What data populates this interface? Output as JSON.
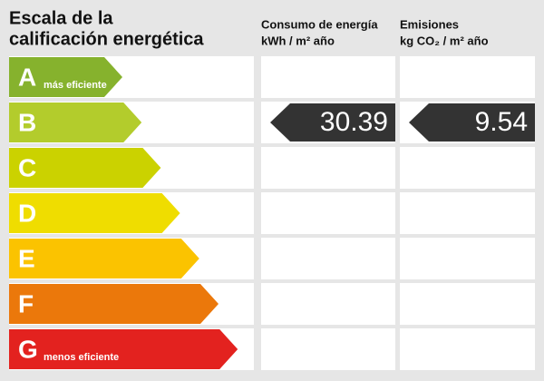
{
  "title_lines": [
    "Escala de la",
    "calificación energética"
  ],
  "columns": [
    {
      "title": "Consumo de energía",
      "unit": "kWh / m² año",
      "grade": "B",
      "value": "30.39"
    },
    {
      "title": "Emisiones",
      "unit": "kg CO₂ / m² año",
      "grade": "B",
      "value": "9.54"
    }
  ],
  "grades": [
    {
      "letter": "A",
      "note": "más eficiente",
      "color": "#86b22d"
    },
    {
      "letter": "B",
      "color": "#b3cc2c"
    },
    {
      "letter": "C",
      "color": "#cbd200"
    },
    {
      "letter": "D",
      "color": "#efdd00"
    },
    {
      "letter": "E",
      "color": "#fbc300"
    },
    {
      "letter": "F",
      "color": "#eb780b"
    },
    {
      "letter": "G",
      "note": "menos eficiente",
      "color": "#e3221f"
    }
  ]
}
